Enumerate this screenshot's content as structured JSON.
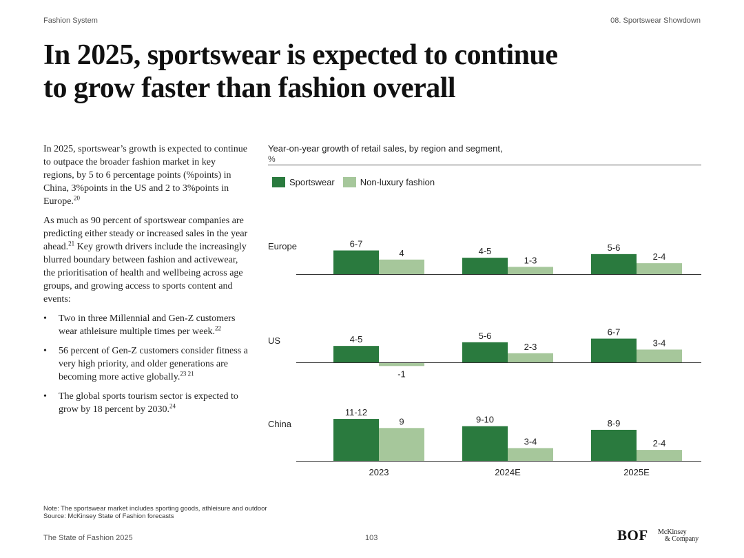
{
  "header": {
    "left": "Fashion System",
    "right": "08. Sportswear Showdown"
  },
  "title": {
    "line1": "In 2025, sportswear is expected to continue",
    "line2": "to grow faster than fashion overall"
  },
  "body": {
    "p1": "In 2025, sportswear’s growth is expected to continue to outpace the broader fashion market in key regions, by 5 to 6 percentage points (%points) in China, 3%points in the US and 2 to 3%points in Europe.",
    "p1_ref": "20",
    "p2": "As much as 90 percent of sportswear companies are predicting either steady or increased sales in the year ahead.",
    "p2_ref": "21",
    "p2_cont": " Key growth drivers include the increasingly blurred boundary between fashion and activewear, the prioritisation of health and wellbeing across age groups, and growing access to sports content and events:",
    "bullet_symbol": "•",
    "bullets": [
      {
        "text": "Two in three Millennial and Gen-Z customers wear athleisure multiple times per week.",
        "ref": "22"
      },
      {
        "text": "56 percent of Gen-Z customers consider fitness a very high priority, and older generations are becoming more active globally.",
        "ref": "23 21"
      },
      {
        "text": "The global sports tourism sector is expected to grow by 18 percent by 2030.",
        "ref": "24"
      }
    ]
  },
  "chart_data": {
    "type": "bar",
    "title": "Year-on-year growth of retail sales, by region and segment,",
    "unit": "%",
    "categories": [
      "2023",
      "2024E",
      "2025E"
    ],
    "legend": [
      "Sportswear",
      "Non-luxury fashion"
    ],
    "colors": {
      "sportswear": "#2a7a3e",
      "non_luxury": "#a6c79b"
    },
    "panels": [
      {
        "region": "Europe",
        "series": [
          {
            "name": "Sportswear",
            "values": [
              6.5,
              4.5,
              5.5
            ],
            "labels": [
              "6-7",
              "4-5",
              "5-6"
            ]
          },
          {
            "name": "Non-luxury fashion",
            "values": [
              4,
              2,
              3
            ],
            "labels": [
              "4",
              "1-3",
              "2-4"
            ]
          }
        ]
      },
      {
        "region": "US",
        "series": [
          {
            "name": "Sportswear",
            "values": [
              4.5,
              5.5,
              6.5
            ],
            "labels": [
              "4-5",
              "5-6",
              "6-7"
            ]
          },
          {
            "name": "Non-luxury fashion",
            "values": [
              -1,
              2.5,
              3.5
            ],
            "labels": [
              "-1",
              "2-3",
              "3-4"
            ]
          }
        ]
      },
      {
        "region": "China",
        "series": [
          {
            "name": "Sportswear",
            "values": [
              11.5,
              9.5,
              8.5
            ],
            "labels": [
              "11-12",
              "9-10",
              "8-9"
            ]
          },
          {
            "name": "Non-luxury fashion",
            "values": [
              9,
              3.5,
              3
            ],
            "labels": [
              "9",
              "3-4",
              "2-4"
            ]
          }
        ]
      }
    ]
  },
  "footnote": {
    "note": "Note: The sportswear market includes sporting goods, athleisure and outdoor",
    "source": "Source: McKinsey State of Fashion forecasts"
  },
  "footer": {
    "left": "The State of Fashion 2025",
    "page": "103",
    "bof_logo": "BOF",
    "mck_line1": "McKinsey",
    "mck_line2": "& Company"
  }
}
